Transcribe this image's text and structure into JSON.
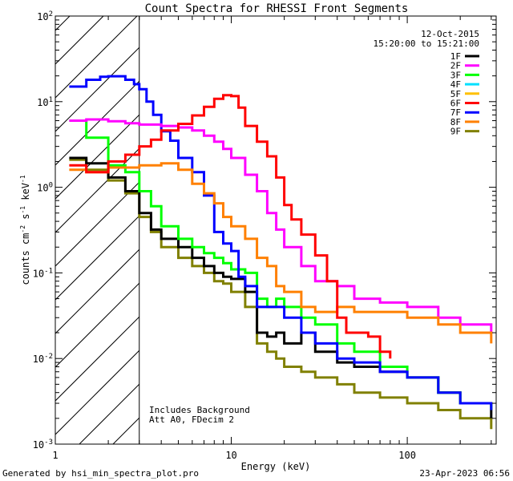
{
  "chart_data": {
    "type": "line",
    "title": "Count Spectra for RHESSI Front Segments",
    "xlabel": "Energy (keV)",
    "ylabel_parts": {
      "base": "counts cm",
      "exp1": "-2",
      "mid": " s",
      "exp2": "-1",
      "end": " keV",
      "exp3": "-1"
    },
    "xscale": "log",
    "yscale": "log",
    "xlim": [
      1,
      320
    ],
    "ylim": [
      0.001,
      100
    ],
    "x_ticks": [
      {
        "value": 1,
        "label": "1"
      },
      {
        "value": 10,
        "label": "10"
      },
      {
        "value": 100,
        "label": "100"
      }
    ],
    "y_ticks": [
      {
        "value": 0.001,
        "base": "10",
        "exp": "-3"
      },
      {
        "value": 0.01,
        "base": "10",
        "exp": "-2"
      },
      {
        "value": 0.1,
        "base": "10",
        "exp": "-1"
      },
      {
        "value": 1,
        "base": "10",
        "exp": "0"
      },
      {
        "value": 10,
        "base": "10",
        "exp": "1"
      },
      {
        "value": 100,
        "base": "10",
        "exp": "2"
      }
    ],
    "shaded_region": {
      "x_start": 1,
      "x_end": 3,
      "pattern": "diagonal hatch"
    },
    "date": "12-Oct-2015",
    "time_range": "15:20:00 to 15:21:00",
    "annotations": [
      "Includes Background",
      "Att A0, FDecim 2"
    ],
    "footer_left": "Generated by hsi_min_spectra_plot.pro",
    "footer_right": "23-Apr-2023 06:56",
    "series": [
      {
        "name": "1F",
        "color": "#000000",
        "x": [
          1.2,
          1.5,
          2,
          2.5,
          3,
          3.5,
          4,
          5,
          6,
          7,
          8,
          9,
          10,
          12,
          14,
          16,
          18,
          20,
          25,
          30,
          40,
          50,
          70,
          100,
          150,
          200,
          300
        ],
        "values": [
          2.2,
          1.9,
          1.3,
          0.9,
          0.5,
          0.32,
          0.25,
          0.2,
          0.15,
          0.12,
          0.1,
          0.09,
          0.085,
          0.06,
          0.02,
          0.018,
          0.02,
          0.015,
          0.02,
          0.012,
          0.009,
          0.008,
          0.007,
          0.006,
          0.004,
          0.003,
          0.002
        ]
      },
      {
        "name": "2F",
        "color": "#ff00ff",
        "x": [
          1.2,
          1.5,
          2,
          2.5,
          3,
          4,
          5,
          6,
          7,
          8,
          9,
          10,
          12,
          14,
          16,
          18,
          20,
          25,
          30,
          40,
          50,
          70,
          100,
          150,
          200,
          300
        ],
        "values": [
          6,
          6.2,
          5.9,
          5.6,
          5.4,
          5.2,
          5.0,
          4.6,
          4.0,
          3.4,
          2.8,
          2.2,
          1.4,
          0.9,
          0.5,
          0.32,
          0.2,
          0.12,
          0.08,
          0.07,
          0.05,
          0.045,
          0.04,
          0.03,
          0.025,
          0.02
        ]
      },
      {
        "name": "3F",
        "color": "#00ff00",
        "x": [
          1.2,
          1.5,
          2,
          2.5,
          3,
          3.5,
          4,
          5,
          6,
          7,
          8,
          9,
          10,
          12,
          14,
          16,
          18,
          20,
          25,
          30,
          40,
          50,
          70,
          100,
          150,
          200,
          300
        ],
        "values": [
          6,
          3.8,
          1.8,
          1.5,
          0.9,
          0.6,
          0.35,
          0.25,
          0.2,
          0.17,
          0.15,
          0.13,
          0.11,
          0.1,
          0.05,
          0.04,
          0.05,
          0.04,
          0.03,
          0.025,
          0.015,
          0.012,
          0.008,
          0.006,
          0.004,
          0.003,
          0.0025
        ]
      },
      {
        "name": "4F",
        "color": "#00e0ff",
        "x": [],
        "values": []
      },
      {
        "name": "5F",
        "color": "#ffc000",
        "x": [],
        "values": []
      },
      {
        "name": "6F",
        "color": "#ff0000",
        "x": [
          1.2,
          1.5,
          2,
          2.5,
          3,
          3.5,
          4,
          5,
          6,
          7,
          8,
          9,
          10,
          11,
          12,
          14,
          16,
          18,
          20,
          22,
          25,
          30,
          35,
          40,
          45,
          50,
          60,
          70,
          80
        ],
        "values": [
          1.8,
          1.5,
          2.0,
          2.4,
          3.0,
          3.6,
          4.6,
          5.5,
          6.9,
          8.7,
          10.8,
          11.9,
          11.6,
          8.5,
          5.2,
          3.4,
          2.3,
          1.3,
          0.62,
          0.42,
          0.28,
          0.16,
          0.08,
          0.03,
          0.02,
          0.02,
          0.018,
          0.012,
          0.01
        ]
      },
      {
        "name": "7F",
        "color": "#0000ff",
        "x": [
          1.2,
          1.5,
          1.8,
          2,
          2.5,
          2.8,
          3,
          3.3,
          3.6,
          4,
          4.5,
          5,
          6,
          7,
          8,
          9,
          10,
          11,
          12,
          14,
          16,
          18,
          20,
          25,
          30,
          40,
          50,
          70,
          100,
          150,
          200,
          300
        ],
        "values": [
          15,
          18,
          19.5,
          19.8,
          18,
          16,
          14,
          10,
          7,
          4.5,
          3.5,
          2.2,
          1.5,
          0.8,
          0.3,
          0.22,
          0.18,
          0.09,
          0.07,
          0.04,
          0.04,
          0.04,
          0.03,
          0.02,
          0.015,
          0.01,
          0.009,
          0.007,
          0.006,
          0.004,
          0.003,
          0.0025
        ]
      },
      {
        "name": "8F",
        "color": "#ff8000",
        "x": [
          1.2,
          1.5,
          2,
          2.5,
          3,
          3.5,
          4,
          5,
          6,
          7,
          8,
          9,
          10,
          12,
          14,
          16,
          18,
          20,
          25,
          30,
          40,
          50,
          70,
          100,
          150,
          200,
          300
        ],
        "values": [
          1.6,
          1.5,
          1.7,
          1.7,
          1.8,
          1.8,
          1.9,
          1.6,
          1.1,
          0.85,
          0.65,
          0.45,
          0.35,
          0.25,
          0.15,
          0.12,
          0.07,
          0.06,
          0.04,
          0.035,
          0.04,
          0.035,
          0.035,
          0.03,
          0.025,
          0.02,
          0.015
        ]
      },
      {
        "name": "9F",
        "color": "#808000",
        "x": [
          1.2,
          1.5,
          2,
          2.5,
          3,
          3.5,
          4,
          5,
          6,
          7,
          8,
          9,
          10,
          12,
          14,
          16,
          18,
          20,
          25,
          30,
          40,
          50,
          70,
          100,
          150,
          200,
          300
        ],
        "values": [
          2.1,
          1.6,
          1.2,
          0.85,
          0.45,
          0.3,
          0.2,
          0.15,
          0.12,
          0.1,
          0.08,
          0.075,
          0.06,
          0.04,
          0.015,
          0.012,
          0.01,
          0.008,
          0.007,
          0.006,
          0.005,
          0.004,
          0.0035,
          0.003,
          0.0025,
          0.002,
          0.0015
        ]
      }
    ]
  }
}
